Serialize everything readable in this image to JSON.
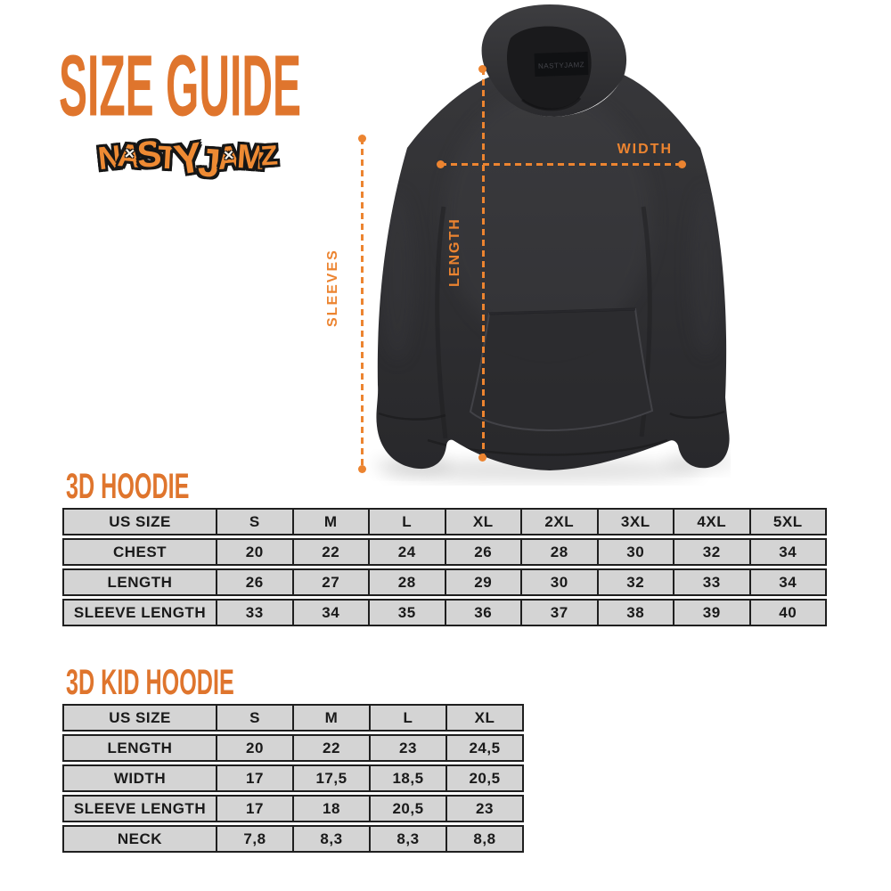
{
  "title": "SIZE GUIDE",
  "logo": {
    "text": "NASTYJAMZ",
    "x_mark": "✕",
    "x_indices": [
      1,
      6
    ],
    "fill_color": "#EE8A33",
    "outline_color": "#161616"
  },
  "colors": {
    "accent_orange": "#DF752D",
    "measure_orange": "#EC8430",
    "table_cell_bg": "#D4D4D4",
    "table_border": "#1F1F1F",
    "table_text": "#1A1A1A",
    "hoodie_dark": "#2E2E31",
    "background": "#FFFFFF"
  },
  "diagram": {
    "labels": {
      "width": "WIDTH",
      "length": "LENGTH",
      "sleeves": "SLEEVES"
    },
    "neck_label_text": "NASTYJAMZ"
  },
  "tables": [
    {
      "heading": "3D HOODIE",
      "columns": [
        "US SIZE",
        "S",
        "M",
        "L",
        "XL",
        "2XL",
        "3XL",
        "4XL",
        "5XL"
      ],
      "rows": [
        {
          "label": "CHEST",
          "values": [
            "20",
            "22",
            "24",
            "26",
            "28",
            "30",
            "32",
            "34"
          ]
        },
        {
          "label": "LENGTH",
          "values": [
            "26",
            "27",
            "28",
            "29",
            "30",
            "32",
            "33",
            "34"
          ]
        },
        {
          "label": "SLEEVE LENGTH",
          "values": [
            "33",
            "34",
            "35",
            "36",
            "37",
            "38",
            "39",
            "40"
          ]
        }
      ]
    },
    {
      "heading": "3D KID HOODIE",
      "columns": [
        "US SIZE",
        "S",
        "M",
        "L",
        "XL"
      ],
      "rows": [
        {
          "label": "LENGTH",
          "values": [
            "20",
            "22",
            "23",
            "24,5"
          ]
        },
        {
          "label": "WIDTH",
          "values": [
            "17",
            "17,5",
            "18,5",
            "20,5"
          ]
        },
        {
          "label": "SLEEVE LENGTH",
          "values": [
            "17",
            "18",
            "20,5",
            "23"
          ]
        },
        {
          "label": "NECK",
          "values": [
            "7,8",
            "8,3",
            "8,3",
            "8,8"
          ]
        }
      ]
    }
  ]
}
